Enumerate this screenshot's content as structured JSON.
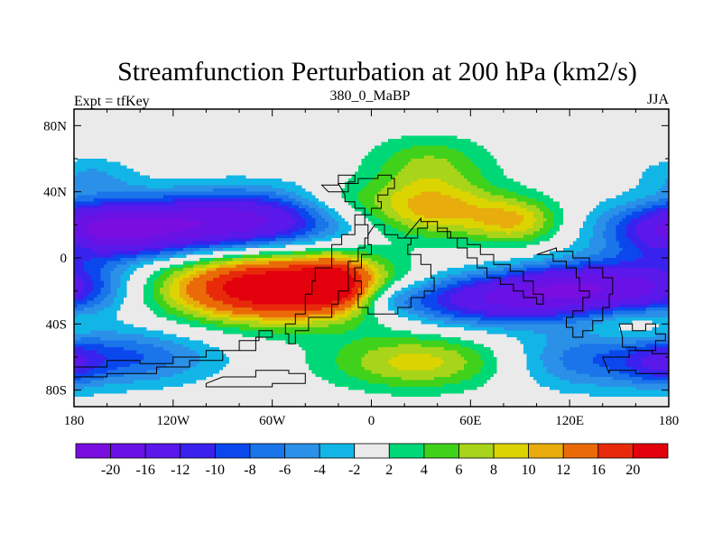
{
  "chart_data": {
    "type": "heatmap",
    "title": "Streamfunction Perturbation at 200 hPa (km2/s)",
    "left_label": "Expt = tfKey",
    "center_label": "380_0_MaBP",
    "right_label": "JJA",
    "x_ticks": [
      "180",
      "120W",
      "60W",
      "0",
      "60E",
      "120E",
      "180"
    ],
    "x_tick_values": [
      -180,
      -120,
      -60,
      0,
      60,
      120,
      180
    ],
    "y_ticks": [
      "80N",
      "40N",
      "0",
      "40S",
      "80S"
    ],
    "y_tick_values": [
      80,
      40,
      0,
      -40,
      -80
    ],
    "xlim": [
      -180,
      180
    ],
    "ylim": [
      -90,
      90
    ],
    "colorbar": {
      "levels": [
        "-20",
        "-16",
        "-12",
        "-10",
        "-8",
        "-6",
        "-4",
        "-2",
        "2",
        "4",
        "6",
        "8",
        "10",
        "12",
        "16",
        "20"
      ],
      "level_values": [
        -20,
        -16,
        -12,
        -10,
        -8,
        -6,
        -4,
        -2,
        2,
        4,
        6,
        8,
        10,
        12,
        16,
        20
      ],
      "colors": [
        "#7a0ee0",
        "#6a12e6",
        "#5a18ea",
        "#3a22ee",
        "#0a48ee",
        "#1a74ea",
        "#2a90e8",
        "#12b6e6",
        "#eaeaea",
        "#00d878",
        "#40d21a",
        "#a8d41a",
        "#dcd400",
        "#e8ac0c",
        "#ea6a08",
        "#e82a0a",
        "#e2000c"
      ]
    },
    "features": [
      {
        "lon": -160,
        "lat": 17,
        "amp": -20,
        "wlon": 38,
        "wlat": 12
      },
      {
        "lon": 162,
        "lat": -18,
        "amp": -16,
        "wlon": 34,
        "wlat": 12
      },
      {
        "lon": -78,
        "lat": 22,
        "amp": -17,
        "wlon": 42,
        "wlat": 13
      },
      {
        "lon": -57,
        "lat": -18,
        "amp": 26,
        "wlon": 46,
        "wlat": 14
      },
      {
        "lon": -22,
        "lat": -15,
        "amp": 11,
        "wlon": 14,
        "wlat": 10
      },
      {
        "lon": 35,
        "lat": 30,
        "amp": 11,
        "wlon": 30,
        "wlat": 12
      },
      {
        "lon": 35,
        "lat": 57,
        "amp": 6,
        "wlon": 26,
        "wlat": 12
      },
      {
        "lon": 88,
        "lat": 22,
        "amp": 9,
        "wlon": 20,
        "wlat": 10
      },
      {
        "lon": 68,
        "lat": -25,
        "amp": -15,
        "wlon": 40,
        "wlat": 11
      },
      {
        "lon": 112,
        "lat": -18,
        "amp": -9,
        "wlon": 24,
        "wlat": 10
      },
      {
        "lon": 10,
        "lat": -25,
        "amp": -5,
        "wlon": 16,
        "wlat": 7
      },
      {
        "lon": -150,
        "lat": -60,
        "amp": -8,
        "wlon": 40,
        "wlat": 12
      },
      {
        "lon": 130,
        "lat": -62,
        "amp": -7,
        "wlon": 38,
        "wlat": 13
      },
      {
        "lon": -170,
        "lat": 50,
        "amp": -4,
        "wlon": 20,
        "wlat": 8
      },
      {
        "lon": 30,
        "lat": -63,
        "amp": 9,
        "wlon": 40,
        "wlat": 12
      },
      {
        "lon": 160,
        "lat": -40,
        "amp": 4,
        "wlon": 20,
        "wlat": 8
      },
      {
        "lon": 175,
        "lat": -65,
        "amp": -5,
        "wlon": 14,
        "wlat": 9
      },
      {
        "lon": -20,
        "lat": 35,
        "amp": 3,
        "wlon": 20,
        "wlat": 8
      },
      {
        "lon": -175,
        "lat": 8,
        "amp": 3,
        "wlon": 6,
        "wlat": 4
      }
    ]
  }
}
